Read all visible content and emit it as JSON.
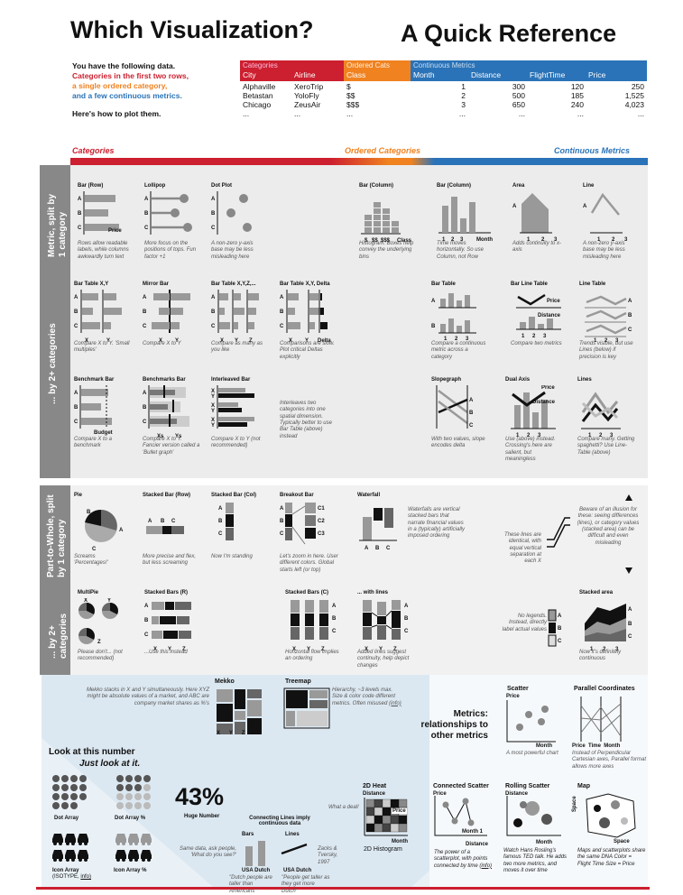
{
  "header": {
    "title_left": "Which Visualization?",
    "title_right": "A Quick Reference",
    "intro": [
      "You have the following data.",
      "Categories in the first two rows,",
      "a single ordered category,",
      "and a few continuous metrics."
    ],
    "howto": "Here's how to plot them."
  },
  "table": {
    "group_categories": "Categories",
    "group_ordered": "Ordered Cats",
    "group_continuous": "Continuous Metrics",
    "columns": [
      "City",
      "Airline",
      "Class",
      "Month",
      "Distance",
      "FlightTime",
      "Price"
    ],
    "rows": [
      [
        "Alphaville",
        "XeroTrip",
        "$",
        "1",
        "300",
        "120",
        "250"
      ],
      [
        "Betastan",
        "YoloFly",
        "$$",
        "2",
        "500",
        "185",
        "1,525"
      ],
      [
        "Chicago",
        "ZeusAir",
        "$$$",
        "3",
        "650",
        "240",
        "4,023"
      ],
      [
        "...",
        "...",
        "...",
        "...",
        "...",
        "...",
        "..."
      ]
    ]
  },
  "band": {
    "categories": "Categories",
    "ordered": "Ordered Categories",
    "continuous": "Continuous Metrics"
  },
  "sections": {
    "metric1": "Metric, split by 1 category",
    "metric2": "... by 2+ categories",
    "ptw1": "Part-to-Whole, split by 1 category",
    "ptw2": "... by 2+ categories"
  },
  "metric1": [
    {
      "title": "Bar (Row)",
      "cap": "Rows allow readable labels, while columns awkwardly turn text",
      "extra": "Price"
    },
    {
      "title": "Lollipop",
      "cap": "More focus on the positions of tops. Fun factor +1"
    },
    {
      "title": "Dot Plot",
      "cap": "A non-zero y-axis base may be less misleading here"
    },
    {
      "title": "Bar (Column)",
      "cap": "Histogram. Boxes help convey the underlying bins",
      "extra": "Class"
    },
    {
      "title": "Bar (Column)",
      "cap": "Time moves horizontally. So use Column, not Row",
      "extra": "Month"
    },
    {
      "title": "Area",
      "cap": "Adds continuity to x-axis"
    },
    {
      "title": "Line",
      "cap": "A non-zero y-axis base may be less misleading here"
    }
  ],
  "metric2a": [
    {
      "title": "Bar Table X,Y",
      "cap": "Compare X to Y. 'Small multiples'"
    },
    {
      "title": "Mirror Bar",
      "cap": "Compare X to Y"
    },
    {
      "title": "Bar Table X,Y,Z,...",
      "cap": "Compare as many as you like"
    },
    {
      "title": "Bar Table X,Y, Delta",
      "cap": "Comparisons are slow. Plot critical Deltas explicitly",
      "extra": "Delta"
    },
    {
      "title": "Bar Table",
      "cap": "Compare a continuous metric across a category"
    },
    {
      "title": "Bar Line Table",
      "cap": "Compare two metrics",
      "l1": "Price",
      "l2": "Distance"
    },
    {
      "title": "Line Table",
      "cap": "Trends visible, but use Lines (below) if precision is key"
    }
  ],
  "metric2b": [
    {
      "title": "Benchmark Bar",
      "cap": "Compare X to a benchmark",
      "extra": "Budget"
    },
    {
      "title": "Benchmarks Bar",
      "cap": "Compare X to Y. Fancier version called a 'Bullet graph'",
      "l1": "Xs",
      "l2": "Ys"
    },
    {
      "title": "Interleaved Bar",
      "cap": "Compare X to Y (not recommended)"
    },
    {
      "cap": "Interleaves two categories into one spatial dimension. Typically better to use Bar Table (above) instead"
    },
    {
      "title": "Slopegraph",
      "cap": "With two values, slope encodes delta"
    },
    {
      "title": "Dual Axis",
      "cap": "Use (above) instead. Crossing's here are salient, but meaningless",
      "l1": "Price",
      "l2": "Distance"
    },
    {
      "title": "Lines",
      "cap": "Compare many. Getting spaghetti? Use Line-Table (above)"
    }
  ],
  "ptw1": [
    {
      "title": "Pie",
      "cap": "Screams 'Percentages!'"
    },
    {
      "title": "Stacked Bar (Row)",
      "cap": "More precise and flex, but less screaming"
    },
    {
      "title": "Stacked Bar (Col)",
      "cap": "Now I'm standing"
    },
    {
      "title": "Breakout Bar",
      "cap": "Let's zoom in here. User different colors. Global starts left (or top)"
    },
    {
      "title": "Waterfall",
      "cap": "Waterfalls are vertical stacked bars that narrate financial values in a (typically) artificially imposed ordering"
    },
    {
      "cap": "These lines are identical, with equal vertical separation at each X"
    },
    {
      "cap": "Beware of an illusion for these: seeing differences (lines), or category values (stacked area) can be difficult and even misleading"
    }
  ],
  "ptw2": [
    {
      "title": "MultiPie",
      "cap": "Please don't... (not recommended)"
    },
    {
      "title": "Stacked Bars (R)",
      "cap": "...Use this instead"
    },
    {
      "title": "Stacked Bars (C)",
      "cap": "Horizontal flow implies an ordering"
    },
    {
      "title": "... with lines",
      "cap": "Added lines suggest continuity, help depict changes"
    },
    {
      "cap": "No legends. Instead, directly label actual values"
    },
    {
      "title": "Stacked area",
      "cap": "Now it's definitely continuous"
    }
  ],
  "mekko": {
    "title": "Mekko",
    "cap": "Mekko stacks in X and Y simultaneously. Here XYZ might be absolute values of a market, and ABC are company market shares as %'s"
  },
  "treemap": {
    "title": "Treemap",
    "cap": "Hierarchy, ~3 levels max. Size & color code different metrics. Often misused",
    "link": "(info)"
  },
  "metrics_title": "Metrics: relationships to other metrics",
  "scatter": {
    "title": "Scatter",
    "cap": "A most powerful chart",
    "ax": "Price",
    "bx": "Month"
  },
  "parallel": {
    "title": "Parallel Coordinates",
    "cap": "Instead of Perpendicular Cartesian axes, Parallel format allows more axes"
  },
  "heat": {
    "title": "2D Heat",
    "sub": "Distance",
    "cap": "2D Histogram",
    "month": "Month",
    "price": "Price",
    "deal": "What a deal!"
  },
  "connected": {
    "title": "Connected Scatter",
    "cap": "The power of a scatterplot, with points connected by time",
    "link": "(info)",
    "price": "Price",
    "distance": "Distance",
    "month": "Month 1"
  },
  "rolling": {
    "title": "Rolling Scatter",
    "cap": "Watch Hans Rosling's famous TED talk. He adds two more metrics, and moves it over time",
    "distance": "Distance",
    "month": "Month"
  },
  "map": {
    "title": "Map",
    "cap": "Maps and scatterplots share the same DNA Color = Flight Time Size = Price",
    "space": "Space"
  },
  "number": {
    "title": "Look at this number",
    "sub": "Just look at it.",
    "big": "43%",
    "big_label": "Huge Number"
  },
  "dot_array": {
    "a": "Dot Array",
    "b": "Dot Array %",
    "c": "Icon Array",
    "d": "(ISOTYPE,",
    "link": "info)",
    "e": "Icon Array %"
  },
  "lines_note": {
    "title": "Connecting Lines imply continuous data",
    "bars": "Bars",
    "lines": "Lines",
    "q": "Same data, ask people, 'What do you see?'",
    "usa": "USA",
    "dutch": "Dutch",
    "a1": "\"Dutch people are taller than Americans\"",
    "a2": "\"People get taller as they get more Dutch\"",
    "ref": "Zacks & Tversky, 1997"
  },
  "colors": {
    "cat": "#cc1f2f",
    "ord": "#f08220",
    "cont": "#2a73b8"
  }
}
